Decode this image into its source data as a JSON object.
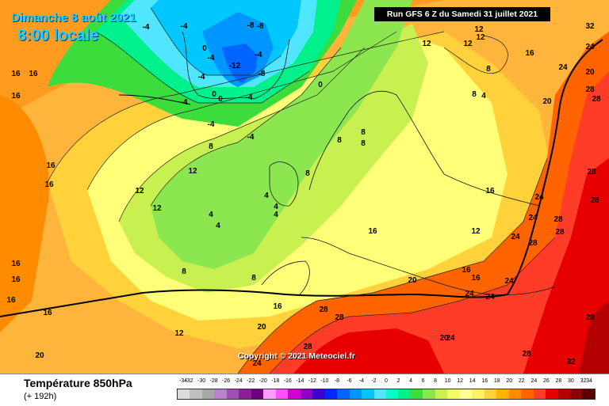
{
  "title": {
    "date_line1": "Dimanche 8 août 2021",
    "date_line2": "8:00 locale",
    "run_info": "Run GFS 6 Z du Samedi 31 juillet 2021",
    "copyright": "Copyright © 2021 Meteociel.fr"
  },
  "legend": {
    "variable": "Température 850hPa",
    "forecast_hour": "(+ 192h)",
    "ticks": [
      "-34",
      "-32",
      "-30",
      "-28",
      "-26",
      "-24",
      "-22",
      "-20",
      "-18",
      "-16",
      "-14",
      "-12",
      "-10",
      "-8",
      "-6",
      "-4",
      "-2",
      "0",
      "2",
      "4",
      "6",
      "8",
      "10",
      "12",
      "14",
      "16",
      "18",
      "20",
      "22",
      "24",
      "26",
      "28",
      "30",
      "32",
      "34"
    ],
    "colors": [
      "#dcdcdc",
      "#c0c0c0",
      "#a8a8a8",
      "#b784c8",
      "#a050b4",
      "#8c1e96",
      "#6e007d",
      "#ff9cff",
      "#ff50ff",
      "#d200d2",
      "#8c00c8",
      "#3c00d2",
      "#0028ff",
      "#0064ff",
      "#0096ff",
      "#00c8ff",
      "#50e6ff",
      "#00ffc8",
      "#00f08c",
      "#3cdc3c",
      "#8ce650",
      "#c8f050",
      "#f0ff64",
      "#ffff96",
      "#fff064",
      "#ffd23c",
      "#ffb400",
      "#ff8c00",
      "#ff6400",
      "#ff3c28",
      "#e60000",
      "#b40000",
      "#8c0000",
      "#5a0000"
    ]
  },
  "map": {
    "contour_labels": [
      {
        "t": "-4"
      },
      {
        "t": "-4"
      },
      {
        "t": "-8"
      },
      {
        "t": "-8"
      },
      {
        "t": "-4"
      },
      {
        "t": "-4"
      },
      {
        "t": "-12"
      },
      {
        "t": "-8"
      },
      {
        "t": "-4"
      },
      {
        "t": "0"
      },
      {
        "t": "0"
      },
      {
        "t": "0"
      },
      {
        "t": "-4"
      },
      {
        "t": "-4"
      },
      {
        "t": "-4"
      },
      {
        "t": "0"
      },
      {
        "t": "-4"
      },
      {
        "t": "4"
      },
      {
        "t": "8"
      },
      {
        "t": "4"
      },
      {
        "t": "4"
      },
      {
        "t": "8"
      },
      {
        "t": "8"
      },
      {
        "t": "8"
      },
      {
        "t": "8"
      },
      {
        "t": "8"
      },
      {
        "t": "4"
      },
      {
        "t": "4"
      },
      {
        "t": "8"
      },
      {
        "t": "12"
      },
      {
        "t": "12"
      },
      {
        "t": "12"
      },
      {
        "t": "12"
      },
      {
        "t": "12"
      },
      {
        "t": "12"
      },
      {
        "t": "12"
      },
      {
        "t": "8"
      },
      {
        "t": "8"
      },
      {
        "t": "4"
      },
      {
        "t": "12"
      },
      {
        "t": "12"
      },
      {
        "t": "16"
      },
      {
        "t": "16"
      },
      {
        "t": "16"
      },
      {
        "t": "16"
      },
      {
        "t": "16"
      },
      {
        "t": "16"
      },
      {
        "t": "16"
      },
      {
        "t": "16"
      },
      {
        "t": "16"
      },
      {
        "t": "16"
      },
      {
        "t": "16"
      },
      {
        "t": "16"
      },
      {
        "t": "16"
      },
      {
        "t": "16"
      },
      {
        "t": "16"
      },
      {
        "t": "20"
      },
      {
        "t": "20"
      },
      {
        "t": "20"
      },
      {
        "t": "20"
      },
      {
        "t": "20"
      },
      {
        "t": "20"
      },
      {
        "t": "24"
      },
      {
        "t": "24"
      },
      {
        "t": "24"
      },
      {
        "t": "24"
      },
      {
        "t": "24"
      },
      {
        "t": "24"
      },
      {
        "t": "24"
      },
      {
        "t": "24"
      },
      {
        "t": "24"
      },
      {
        "t": "24"
      },
      {
        "t": "28"
      },
      {
        "t": "28"
      },
      {
        "t": "28"
      },
      {
        "t": "28"
      },
      {
        "t": "28"
      },
      {
        "t": "28"
      },
      {
        "t": "28"
      },
      {
        "t": "28"
      },
      {
        "t": "28"
      },
      {
        "t": "28"
      },
      {
        "t": "28"
      },
      {
        "t": "28"
      },
      {
        "t": "32"
      },
      {
        "t": "32"
      }
    ]
  }
}
